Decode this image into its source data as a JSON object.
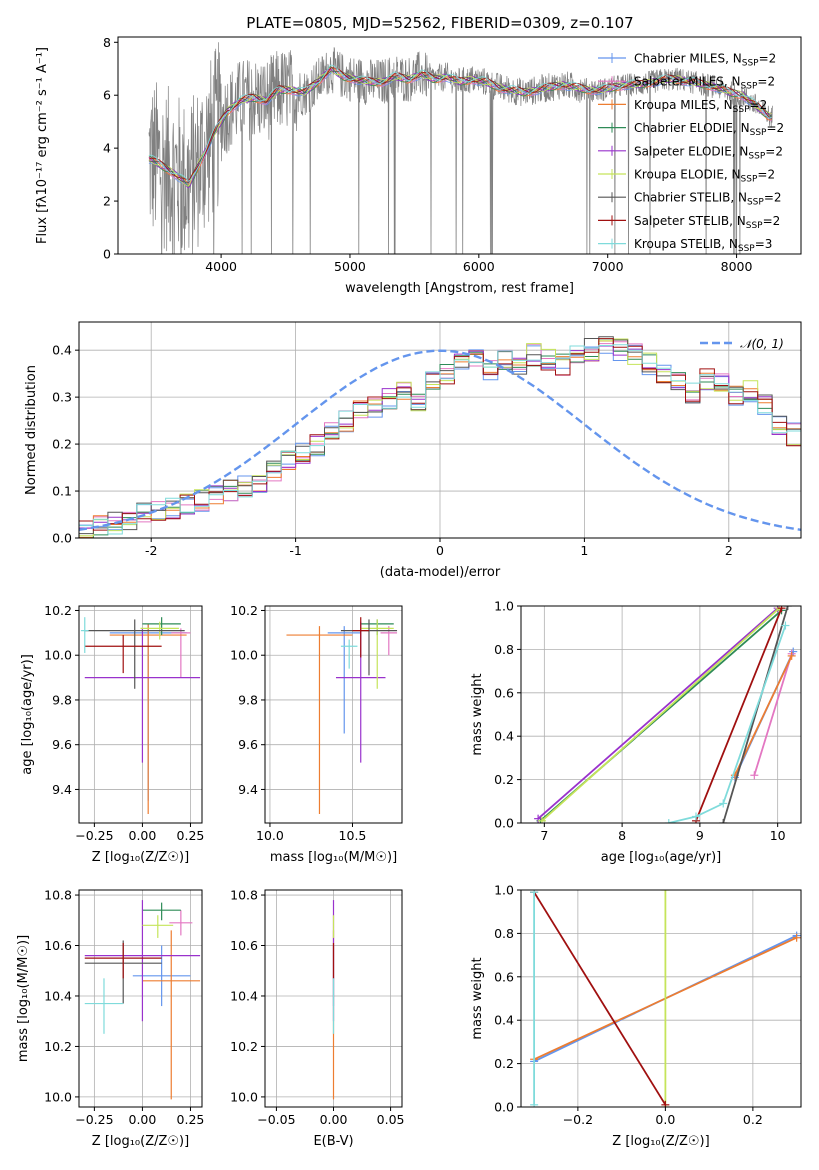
{
  "title": "PLATE=0805, MJD=52562, FIBERID=0309, z=0.107",
  "colors": {
    "chabrier_miles": "#6495ED",
    "salpeter_miles": "#E377C2",
    "kroupa_miles": "#ED7D31",
    "chabrier_elodie": "#2E8B57",
    "salpeter_elodie": "#9932CC",
    "kroupa_elodie": "#C5E45A",
    "chabrier_stelib": "#555555",
    "salpeter_stelib": "#A01010",
    "kroupa_stelib": "#7FDBDB",
    "data": "#808080"
  },
  "chart_data": [
    {
      "id": "spectrum",
      "type": "line",
      "title": "PLATE=0805, MJD=52562, FIBERID=0309, z=0.107",
      "xlabel": "wavelength [Angstrom, rest frame]",
      "ylabel": "Flux [fλ10⁻¹⁷ erg cm⁻² s⁻¹ A⁻¹]",
      "xlim": [
        3200,
        8500
      ],
      "ylim": [
        0,
        8.2
      ],
      "xticks": [
        4000,
        5000,
        6000,
        7000,
        8000
      ],
      "yticks": [
        0,
        2,
        4,
        6,
        8
      ],
      "legend_position": "top-right",
      "model_x": [
        3450,
        3550,
        3650,
        3750,
        3850,
        3950,
        4050,
        4150,
        4250,
        4350,
        4450,
        4550,
        4650,
        4750,
        4850,
        4950,
        5050,
        5150,
        5250,
        5350,
        5450,
        5550,
        5650,
        5750,
        5850,
        5950,
        6050,
        6150,
        6250,
        6350,
        6450,
        6550,
        6650,
        6750,
        6850,
        6950,
        7050,
        7150,
        7250,
        7350,
        7450,
        7550,
        7650,
        7750,
        7850,
        7950,
        8050,
        8150,
        8250
      ],
      "model_y": [
        3.6,
        3.3,
        3.0,
        2.6,
        3.6,
        4.6,
        5.4,
        5.8,
        5.9,
        5.8,
        6.2,
        6.2,
        6.1,
        6.5,
        7.0,
        6.7,
        6.6,
        6.5,
        6.5,
        6.7,
        6.6,
        6.8,
        6.6,
        6.7,
        6.5,
        6.6,
        6.5,
        6.3,
        6.2,
        6.1,
        6.2,
        6.3,
        6.4,
        6.3,
        6.2,
        6.2,
        6.3,
        6.4,
        6.4,
        6.5,
        6.6,
        6.6,
        6.5,
        6.4,
        6.3,
        6.1,
        6.0,
        5.6,
        5.2
      ],
      "series": [
        {
          "name": "Chabrier MILES, N",
          "sub": "SSP",
          "tail": "=2",
          "color": "#6495ED"
        },
        {
          "name": "Salpeter MILES, N",
          "sub": "SSP",
          "tail": "=2",
          "color": "#E377C2"
        },
        {
          "name": "Kroupa MILES, N",
          "sub": "SSP",
          "tail": "=2",
          "color": "#ED7D31"
        },
        {
          "name": "Chabrier ELODIE, N",
          "sub": "SSP",
          "tail": "=2",
          "color": "#2E8B57"
        },
        {
          "name": "Salpeter ELODIE, N",
          "sub": "SSP",
          "tail": "=2",
          "color": "#9932CC"
        },
        {
          "name": "Kroupa ELODIE, N",
          "sub": "SSP",
          "tail": "=2",
          "color": "#C5E45A"
        },
        {
          "name": "Chabrier STELIB, N",
          "sub": "SSP",
          "tail": "=2",
          "color": "#555555"
        },
        {
          "name": "Salpeter STELIB, N",
          "sub": "SSP",
          "tail": "=2",
          "color": "#A01010"
        },
        {
          "name": "Kroupa STELIB, N",
          "sub": "SSP",
          "tail": "=3",
          "color": "#7FDBDB"
        }
      ]
    },
    {
      "id": "residuals",
      "type": "line",
      "xlabel": "(data-model)/error",
      "ylabel": "Normed distribution",
      "xlim": [
        -2.5,
        2.5
      ],
      "ylim": [
        0,
        0.46
      ],
      "xticks": [
        -2,
        -1,
        0,
        1,
        2
      ],
      "yticks": [
        0.0,
        0.1,
        0.2,
        0.3,
        0.4
      ],
      "grid": true,
      "legend_position": "top-right",
      "legend_label": "𝒩(0, 1)",
      "bins_start": -2.5,
      "bin_width": 0.1,
      "hist_base": [
        0.02,
        0.025,
        0.03,
        0.04,
        0.05,
        0.055,
        0.06,
        0.07,
        0.08,
        0.09,
        0.1,
        0.11,
        0.12,
        0.14,
        0.16,
        0.18,
        0.2,
        0.23,
        0.25,
        0.27,
        0.28,
        0.3,
        0.31,
        0.29,
        0.33,
        0.35,
        0.37,
        0.38,
        0.36,
        0.38,
        0.37,
        0.39,
        0.38,
        0.37,
        0.39,
        0.4,
        0.41,
        0.4,
        0.39,
        0.37,
        0.35,
        0.33,
        0.31,
        0.34,
        0.33,
        0.3,
        0.31,
        0.28,
        0.24,
        0.22,
        0.2,
        0.18,
        0.17,
        0.15,
        0.13,
        0.11,
        0.09,
        0.08,
        0.07,
        0.06,
        0.05,
        0.045,
        0.04,
        0.035,
        0.03,
        0.025,
        0.02,
        0.02,
        0.02,
        0.02
      ]
    },
    {
      "id": "age-vs-z",
      "type": "scatter",
      "xlabel": "Z [log₁₀(Z/Z☉)]",
      "ylabel": "age  [log₁₀(age/yr)]",
      "xlim": [
        -0.33,
        0.31
      ],
      "ylim": [
        9.25,
        10.22
      ],
      "xticks": [
        -0.25,
        0.0,
        0.25
      ],
      "xticklabels": [
        "−0.25",
        "0.00",
        "0.25"
      ],
      "yticks": [
        9.4,
        9.6,
        9.8,
        10.0,
        10.2
      ],
      "grid": true,
      "points": [
        {
          "series": "Chabrier MILES",
          "x": 0.03,
          "y": 10.1,
          "xerr": 0.2,
          "yerr": [
            0.75,
            0.04
          ],
          "color": "#6495ED"
        },
        {
          "series": "Salpeter MILES",
          "x": 0.2,
          "y": 10.1,
          "xerr": 0.05,
          "yerr": [
            0.2,
            0.02
          ],
          "color": "#E377C2"
        },
        {
          "series": "Kroupa MILES",
          "x": 0.03,
          "y": 10.09,
          "xerr": 0.2,
          "yerr": [
            0.8,
            0.05
          ],
          "color": "#ED7D31"
        },
        {
          "series": "Chabrier ELODIE",
          "x": 0.1,
          "y": 10.14,
          "xerr": 0.1,
          "yerr": [
            0.05,
            0.03
          ],
          "color": "#2E8B57"
        },
        {
          "series": "Salpeter ELODIE",
          "x": 0.0,
          "y": 9.9,
          "xerr": 0.3,
          "yerr": [
            0.38,
            0.22
          ],
          "color": "#9932CC"
        },
        {
          "series": "Kroupa ELODIE",
          "x": 0.09,
          "y": 10.12,
          "xerr": 0.1,
          "yerr": [
            0.05,
            0.03
          ],
          "color": "#C5E45A"
        },
        {
          "series": "Chabrier STELIB",
          "x": -0.04,
          "y": 10.11,
          "xerr": 0.26,
          "yerr": [
            0.26,
            0.05
          ],
          "color": "#555555"
        },
        {
          "series": "Salpeter STELIB",
          "x": -0.1,
          "y": 10.04,
          "xerr": 0.2,
          "yerr": [
            0.12,
            0.05
          ],
          "color": "#A01010"
        },
        {
          "series": "Kroupa STELIB",
          "x": -0.3,
          "y": 10.11,
          "xerr": 0.02,
          "yerr": [
            0.1,
            0.06
          ],
          "color": "#7FDBDB"
        }
      ]
    },
    {
      "id": "age-vs-mass",
      "type": "scatter",
      "xlabel": "mass [log₁₀(M/M☉)]",
      "xlim": [
        9.97,
        10.8
      ],
      "ylim": [
        9.25,
        10.22
      ],
      "xticks": [
        10.0,
        10.5
      ],
      "xticklabels": [
        "10.0",
        "10.5"
      ],
      "yticks": [
        9.4,
        9.6,
        9.8,
        10.0,
        10.2
      ],
      "grid": true,
      "points": [
        {
          "series": "Chabrier MILES",
          "x": 10.45,
          "y": 10.1,
          "xerr": 0.1,
          "yerr": [
            0.45,
            0.03
          ],
          "color": "#6495ED"
        },
        {
          "series": "Salpeter MILES",
          "x": 10.72,
          "y": 10.1,
          "xerr": 0.05,
          "yerr": [
            0.1,
            0.03
          ],
          "color": "#E377C2"
        },
        {
          "series": "Kroupa MILES",
          "x": 10.3,
          "y": 10.09,
          "xerr": 0.2,
          "yerr": [
            0.8,
            0.04
          ],
          "color": "#ED7D31"
        },
        {
          "series": "Chabrier ELODIE",
          "x": 10.65,
          "y": 10.14,
          "xerr": 0.1,
          "yerr": [
            0.05,
            0.02
          ],
          "color": "#2E8B57"
        },
        {
          "series": "Salpeter ELODIE",
          "x": 10.55,
          "y": 9.9,
          "xerr": 0.15,
          "yerr": [
            0.38,
            0.25
          ],
          "color": "#9932CC"
        },
        {
          "series": "Kroupa ELODIE",
          "x": 10.65,
          "y": 10.12,
          "xerr": 0.1,
          "yerr": [
            0.27,
            0.04
          ],
          "color": "#C5E45A"
        },
        {
          "series": "Chabrier STELIB",
          "x": 10.6,
          "y": 10.11,
          "xerr": 0.17,
          "yerr": [
            0.2,
            0.05
          ],
          "color": "#555555"
        },
        {
          "series": "Salpeter STELIB",
          "x": 10.55,
          "y": 10.11,
          "xerr": 0.05,
          "yerr": [
            0.12,
            0.06
          ],
          "color": "#A01010"
        },
        {
          "series": "Kroupa STELIB",
          "x": 10.48,
          "y": 10.04,
          "xerr": 0.05,
          "yerr": [
            0.1,
            0.03
          ],
          "color": "#7FDBDB"
        }
      ]
    },
    {
      "id": "mass-weight-vs-age",
      "type": "line",
      "xlabel": "age  [log₁₀(age/yr)]",
      "ylabel": "mass weight",
      "xlim": [
        6.7,
        10.3
      ],
      "ylim": [
        0,
        1
      ],
      "xticks": [
        7,
        8,
        9,
        10
      ],
      "yticks": [
        0.0,
        0.2,
        0.4,
        0.6,
        0.8,
        1.0
      ],
      "grid": true,
      "series": [
        {
          "name": "Chabrier MILES",
          "color": "#6495ED",
          "x": [
            9.45,
            10.2
          ],
          "y": [
            0.21,
            0.79
          ]
        },
        {
          "name": "Salpeter MILES",
          "color": "#E377C2",
          "x": [
            9.7,
            10.18
          ],
          "y": [
            0.22,
            0.78
          ]
        },
        {
          "name": "Kroupa MILES",
          "color": "#ED7D31",
          "x": [
            9.45,
            10.18
          ],
          "y": [
            0.22,
            0.77
          ]
        },
        {
          "name": "Chabrier ELODIE",
          "color": "#2E8B57",
          "x": [
            6.95,
            10.05
          ],
          "y": [
            0.01,
            0.98
          ]
        },
        {
          "name": "Salpeter ELODIE",
          "color": "#9932CC",
          "x": [
            6.92,
            10.0
          ],
          "y": [
            0.02,
            0.99
          ]
        },
        {
          "name": "Kroupa ELODIE",
          "color": "#C5E45A",
          "x": [
            6.97,
            10.02
          ],
          "y": [
            0.01,
            0.99
          ]
        },
        {
          "name": "Chabrier STELIB",
          "color": "#555555",
          "x": [
            9.3,
            10.13
          ],
          "y": [
            0.0,
            1.0
          ]
        },
        {
          "name": "Salpeter STELIB",
          "color": "#A01010",
          "x": [
            8.95,
            10.05
          ],
          "y": [
            0.01,
            0.99
          ]
        },
        {
          "name": "Kroupa STELIB",
          "color": "#7FDBDB",
          "x": [
            8.6,
            8.95,
            9.3,
            10.1
          ],
          "y": [
            0.0,
            0.03,
            0.09,
            0.91
          ]
        }
      ]
    },
    {
      "id": "mass-vs-z",
      "type": "scatter",
      "xlabel": "Z [log₁₀(Z/Z☉)]",
      "ylabel": "mass [log₁₀(M/M☉)]",
      "xlim": [
        -0.33,
        0.31
      ],
      "ylim": [
        9.96,
        10.82
      ],
      "xticks": [
        -0.25,
        0.0,
        0.25
      ],
      "xticklabels": [
        "−0.25",
        "0.00",
        "0.25"
      ],
      "yticks": [
        10.0,
        10.2,
        10.4,
        10.6,
        10.8
      ],
      "grid": true,
      "points": [
        {
          "series": "Chabrier MILES",
          "x": 0.1,
          "y": 10.48,
          "xerr": 0.15,
          "yerr": [
            0.12,
            0.12
          ],
          "color": "#6495ED"
        },
        {
          "series": "Salpeter MILES",
          "x": 0.2,
          "y": 10.69,
          "xerr": 0.06,
          "yerr": [
            0.05,
            0.05
          ],
          "color": "#E377C2"
        },
        {
          "series": "Kroupa MILES",
          "x": 0.15,
          "y": 10.46,
          "xerr": 0.15,
          "yerr": [
            0.47,
            0.2
          ],
          "color": "#ED7D31"
        },
        {
          "series": "Chabrier ELODIE",
          "x": 0.1,
          "y": 10.74,
          "xerr": 0.1,
          "yerr": [
            0.04,
            0.03
          ],
          "color": "#2E8B57"
        },
        {
          "series": "Salpeter ELODIE",
          "x": 0.0,
          "y": 10.56,
          "xerr": 0.3,
          "yerr": [
            0.26,
            0.22
          ],
          "color": "#9932CC"
        },
        {
          "series": "Kroupa ELODIE",
          "x": 0.08,
          "y": 10.68,
          "xerr": 0.08,
          "yerr": [
            0.05,
            0.04
          ],
          "color": "#C5E45A"
        },
        {
          "series": "Chabrier STELIB",
          "x": -0.1,
          "y": 10.53,
          "xerr": 0.2,
          "yerr": [
            0.16,
            0.09
          ],
          "color": "#555555"
        },
        {
          "series": "Salpeter STELIB",
          "x": -0.1,
          "y": 10.55,
          "xerr": 0.2,
          "yerr": [
            0.08,
            0.06
          ],
          "color": "#A01010"
        },
        {
          "series": "Kroupa STELIB",
          "x": -0.2,
          "y": 10.37,
          "xerr": 0.1,
          "yerr": [
            0.12,
            0.1
          ],
          "color": "#7FDBDB"
        }
      ]
    },
    {
      "id": "mass-vs-ebv",
      "type": "scatter",
      "xlabel": "E(B-V)",
      "xlim": [
        -0.06,
        0.06
      ],
      "ylim": [
        9.96,
        10.82
      ],
      "xticks": [
        -0.05,
        0.0,
        0.05
      ],
      "xticklabels": [
        "−0.05",
        "0.00",
        "0.05"
      ],
      "yticks": [
        10.0,
        10.2,
        10.4,
        10.6,
        10.8
      ],
      "grid": true,
      "points": [
        {
          "series": "Chabrier MILES",
          "x": 0.0,
          "y": 10.48,
          "xerr": 0,
          "yerr": [
            0.12,
            0.12
          ],
          "color": "#6495ED"
        },
        {
          "series": "Kroupa MILES",
          "x": 0.0,
          "y": 10.46,
          "xerr": 0,
          "yerr": [
            0.47,
            0.2
          ],
          "color": "#ED7D31"
        },
        {
          "series": "Salpeter ELODIE",
          "x": 0.0,
          "y": 10.56,
          "xerr": 0,
          "yerr": [
            0.26,
            0.22
          ],
          "color": "#9932CC"
        },
        {
          "series": "Kroupa ELODIE",
          "x": 0.0,
          "y": 10.68,
          "xerr": 0,
          "yerr": [
            0.05,
            0.04
          ],
          "color": "#C5E45A"
        },
        {
          "series": "Salpeter STELIB",
          "x": 0.0,
          "y": 10.55,
          "xerr": 0,
          "yerr": [
            0.08,
            0.06
          ],
          "color": "#A01010"
        },
        {
          "series": "Kroupa STELIB",
          "x": 0.0,
          "y": 10.37,
          "xerr": 0,
          "yerr": [
            0.12,
            0.1
          ],
          "color": "#7FDBDB"
        }
      ]
    },
    {
      "id": "mass-weight-vs-z",
      "type": "line",
      "xlabel": "Z [log₁₀(Z/Z☉)]",
      "ylabel": "mass weight",
      "xlim": [
        -0.33,
        0.31
      ],
      "ylim": [
        0,
        1
      ],
      "xticks": [
        -0.2,
        0.0,
        0.2
      ],
      "xticklabels": [
        "−0.2",
        "0.0",
        "0.2"
      ],
      "yticks": [
        0.0,
        0.2,
        0.4,
        0.6,
        0.8,
        1.0
      ],
      "grid": true,
      "series": [
        {
          "name": "Chabrier MILES",
          "color": "#6495ED",
          "x": [
            -0.3,
            0.3
          ],
          "y": [
            0.21,
            0.79
          ]
        },
        {
          "name": "Kroupa MILES",
          "color": "#ED7D31",
          "x": [
            -0.3,
            0.3
          ],
          "y": [
            0.22,
            0.78
          ]
        },
        {
          "name": "Kroupa ELODIE",
          "color": "#C5E45A",
          "x": [
            0.0,
            0.0
          ],
          "y": [
            0.0,
            1.0
          ]
        },
        {
          "name": "Salpeter STELIB",
          "color": "#A01010",
          "x": [
            -0.3,
            0.0
          ],
          "y": [
            0.99,
            0.01
          ]
        },
        {
          "name": "Kroupa STELIB",
          "color": "#7FDBDB",
          "x": [
            -0.3,
            -0.3
          ],
          "y": [
            0.01,
            0.99
          ]
        }
      ]
    }
  ]
}
